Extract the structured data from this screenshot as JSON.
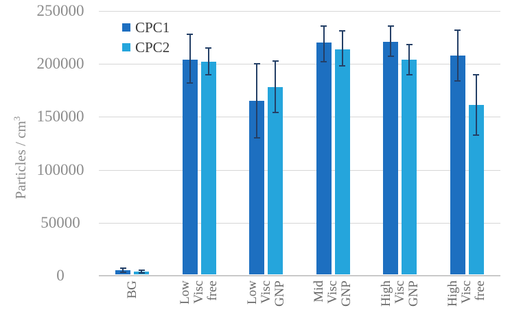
{
  "chart_data": {
    "type": "bar",
    "title": "",
    "xlabel": "",
    "ylabel": "Particles / cm³",
    "ylabel_text": "Particles / cm",
    "ylabel_superscript": "3",
    "ylim": [
      0,
      250000
    ],
    "ytick_interval": 50000,
    "yticks": [
      "250000",
      "200000",
      "150000",
      "100000",
      "50000",
      "0"
    ],
    "grid": "horizontal",
    "gridline_color": "#d6d6d6",
    "axis_line_color": "#c9c9c9",
    "ytick_label_color": "#8c8c8c",
    "xtick_label_color": "#696969",
    "legend_position": "top-left-inside",
    "legend_text_color": "#3a3a3a",
    "error_bar_color": "#243f66",
    "categories": [
      "BG",
      "Low Visc free",
      "Low Visc GNP",
      "Mid Visc GNP",
      "High Visc GNP",
      "High Visc free"
    ],
    "category_lines": [
      [
        "BG"
      ],
      [
        "Low",
        "Visc",
        "free"
      ],
      [
        "Low",
        "Visc",
        "GNP"
      ],
      [
        "Mid",
        "Visc",
        "GNP"
      ],
      [
        "High",
        "Visc",
        "GNP"
      ],
      [
        "High",
        "Visc",
        "free"
      ]
    ],
    "series": [
      {
        "name": "CPC1",
        "color": "#1d6fc0",
        "values": [
          5000,
          204000,
          165000,
          220000,
          221000,
          208000
        ],
        "error_low": [
          3000,
          182000,
          130000,
          202000,
          207000,
          184000
        ],
        "error_high": [
          7000,
          228000,
          200000,
          236000,
          236000,
          232000
        ]
      },
      {
        "name": "CPC2",
        "color": "#25a5dc",
        "values": [
          4000,
          202000,
          178000,
          214000,
          204000,
          161000
        ],
        "error_low": [
          2500,
          190000,
          154000,
          198000,
          190000,
          133000
        ],
        "error_high": [
          5500,
          215000,
          203000,
          231000,
          218000,
          190000
        ]
      }
    ]
  }
}
